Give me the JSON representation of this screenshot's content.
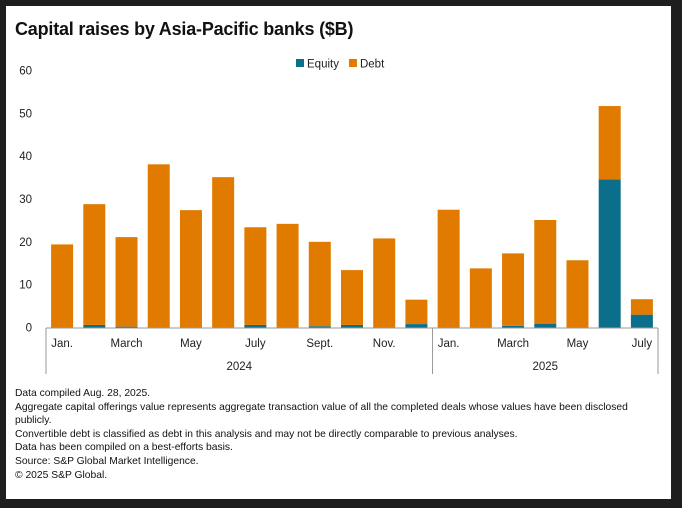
{
  "chart_data": {
    "type": "bar",
    "stacked": true,
    "title": "Capital raises by Asia-Pacific banks ($B)",
    "xlabel": "",
    "ylabel": "",
    "ylim": [
      0,
      60
    ],
    "yticks": [
      0,
      10,
      20,
      30,
      40,
      50,
      60
    ],
    "grid": false,
    "legend_position": "top-center",
    "categories": [
      "Jan. 2024",
      "Feb. 2024",
      "March 2024",
      "Apr. 2024",
      "May 2024",
      "June 2024",
      "July 2024",
      "Aug. 2024",
      "Sept. 2024",
      "Oct. 2024",
      "Nov. 2024",
      "Dec. 2024",
      "Jan. 2025",
      "Feb. 2025",
      "March 2025",
      "Apr. 2025",
      "May 2025",
      "June 2025",
      "July 2025"
    ],
    "tick_labels": [
      "Jan.",
      "",
      "March",
      "",
      "May",
      "",
      "July",
      "",
      "Sept.",
      "",
      "Nov.",
      "",
      "Jan.",
      "",
      "March",
      "",
      "May",
      "",
      "July"
    ],
    "year_groups": [
      {
        "label": "2024",
        "start": 0,
        "end": 11
      },
      {
        "label": "2025",
        "start": 12,
        "end": 18
      }
    ],
    "series": [
      {
        "name": "Equity",
        "color": "#0b6f8c",
        "values": [
          0.0,
          0.6,
          0.2,
          0.0,
          0.0,
          0.0,
          0.6,
          0.0,
          0.3,
          0.6,
          0.0,
          0.8,
          0.0,
          0.0,
          0.4,
          0.9,
          0.0,
          34.6,
          3.0
        ]
      },
      {
        "name": "Debt",
        "color": "#e07b00",
        "values": [
          19.4,
          28.2,
          20.9,
          38.1,
          27.4,
          35.1,
          22.8,
          24.2,
          19.7,
          12.8,
          20.8,
          5.7,
          27.5,
          13.8,
          16.9,
          24.2,
          15.7,
          17.1,
          3.6
        ]
      }
    ]
  },
  "footer": {
    "lines": [
      "Data compiled Aug. 28, 2025.",
      "Aggregate capital offerings value represents aggregate transaction value of all the completed deals whose values have been disclosed publicly.",
      "Convertible debt is classified as debt in this analysis and may not be directly comparable to previous analyses.",
      "Data has been compiled on a best-efforts basis.",
      "Source: S&P Global Market Intelligence.",
      "© 2025 S&P Global."
    ]
  }
}
